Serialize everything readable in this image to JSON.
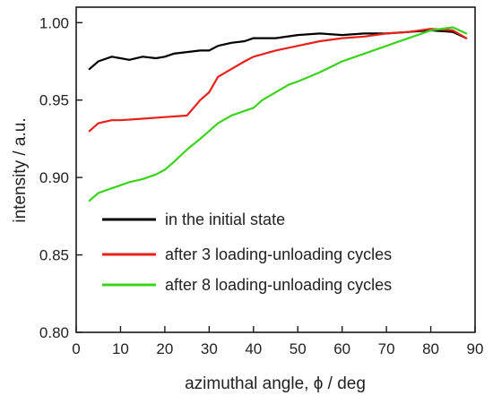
{
  "chart_data": {
    "type": "line",
    "title": "",
    "xlabel": "azimuthal angle, ϕ / deg",
    "ylabel": "intensity / a.u.",
    "xlim": [
      0,
      90
    ],
    "ylim": [
      0.8,
      1.01
    ],
    "x_ticks": [
      "0",
      "10",
      "20",
      "30",
      "40",
      "50",
      "60",
      "70",
      "80",
      "90"
    ],
    "y_ticks": [
      "0.80",
      "0.85",
      "0.90",
      "0.95",
      "1.00"
    ],
    "grid": false,
    "legend_position": "lower-left",
    "series": [
      {
        "name": "in the initial state",
        "color": "#000000",
        "x": [
          3,
          5,
          8,
          10,
          12,
          15,
          18,
          20,
          22,
          25,
          28,
          30,
          32,
          35,
          38,
          40,
          45,
          50,
          55,
          60,
          65,
          70,
          75,
          80,
          85,
          88
        ],
        "y": [
          0.97,
          0.975,
          0.978,
          0.977,
          0.976,
          0.978,
          0.977,
          0.978,
          0.98,
          0.981,
          0.982,
          0.982,
          0.985,
          0.987,
          0.988,
          0.99,
          0.99,
          0.992,
          0.993,
          0.992,
          0.993,
          0.993,
          0.994,
          0.995,
          0.994,
          0.99
        ]
      },
      {
        "name": "after 3 loading-unloading cycles",
        "color": "#e8201a",
        "x": [
          3,
          5,
          8,
          10,
          15,
          20,
          25,
          28,
          30,
          32,
          35,
          38,
          40,
          45,
          50,
          55,
          60,
          65,
          70,
          75,
          80,
          85,
          88
        ],
        "y": [
          0.93,
          0.935,
          0.937,
          0.937,
          0.938,
          0.939,
          0.94,
          0.95,
          0.955,
          0.965,
          0.97,
          0.975,
          0.978,
          0.982,
          0.985,
          0.988,
          0.99,
          0.991,
          0.993,
          0.994,
          0.996,
          0.995,
          0.99
        ]
      },
      {
        "name": "after 8 loading-unloading cycles",
        "color": "#39d41a",
        "x": [
          3,
          5,
          8,
          10,
          12,
          15,
          18,
          20,
          22,
          25,
          28,
          30,
          32,
          35,
          38,
          40,
          42,
          45,
          48,
          50,
          55,
          60,
          65,
          70,
          75,
          80,
          85,
          88
        ],
        "y": [
          0.885,
          0.89,
          0.893,
          0.895,
          0.897,
          0.899,
          0.902,
          0.905,
          0.91,
          0.918,
          0.925,
          0.93,
          0.935,
          0.94,
          0.943,
          0.945,
          0.95,
          0.955,
          0.96,
          0.962,
          0.968,
          0.975,
          0.98,
          0.985,
          0.99,
          0.995,
          0.997,
          0.993
        ]
      }
    ]
  }
}
